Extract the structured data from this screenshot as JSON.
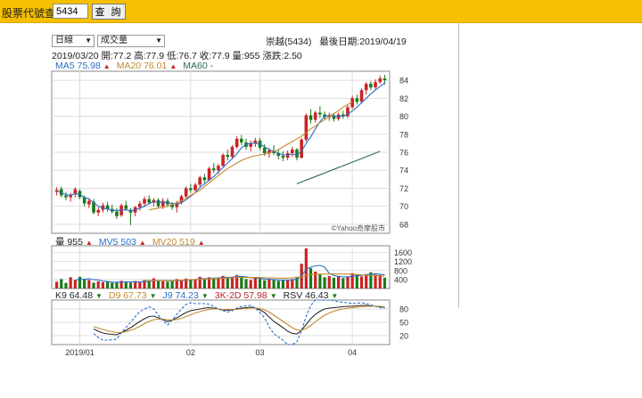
{
  "search": {
    "label": "股票代號查詢",
    "value": "5434",
    "button": "查 詢"
  },
  "controls": {
    "period": "日線",
    "indicator": "成交量"
  },
  "stock": {
    "title": "崇越(5434)",
    "last_date_label": "最後日期:",
    "last_date": "2019/04/19"
  },
  "quote_line": "2019/03/20 開:77.2 高:77.9 低:76.7 收:77.9 量:955 漲跌:2.50",
  "ma_legend": [
    {
      "label": "MA5 75.98",
      "color": "#2b6ec9",
      "arrow": "up"
    },
    {
      "label": "MA20 76.01",
      "color": "#c28a2f",
      "arrow": "up"
    },
    {
      "label": "MA60 -",
      "color": "#2f6b4f",
      "arrow": ""
    }
  ],
  "vol_legend": [
    {
      "label": "量 955",
      "color": "#222222",
      "arrow": "up"
    },
    {
      "label": "MV5 503",
      "color": "#2b6ec9",
      "arrow": "up"
    },
    {
      "label": "MV20 519",
      "color": "#c28a2f",
      "arrow": "up"
    }
  ],
  "kd_legend": [
    {
      "label": "K9 64.48",
      "color": "#2b2b2b",
      "arrow": "down"
    },
    {
      "label": "D9 67.73",
      "color": "#c28a2f",
      "arrow": "down"
    },
    {
      "label": "J9 74.23",
      "color": "#2b6ec9",
      "arrow": "down"
    },
    {
      "label": "3K-2D 57.98",
      "color": "#b3262b",
      "arrow": "down"
    },
    {
      "label": "RSV 46.43",
      "color": "#222222",
      "arrow": "down"
    }
  ],
  "watermark": "©Yahoo奇摩股市",
  "colors": {
    "up": "#cc2222",
    "down": "#1a7a1a",
    "ma5": "#2b6ec9",
    "ma20": "#c28a2f",
    "ma60": "#2f6b4f"
  },
  "chart_data": [
    {
      "type": "candlestick",
      "yticks": [
        68,
        70,
        72,
        74,
        76,
        78,
        80,
        82,
        84
      ],
      "ylim": [
        67,
        85
      ],
      "x_ticks": [
        "2019/01",
        "02",
        "03",
        "04"
      ],
      "candles": [
        {
          "o": 71.6,
          "h": 72.1,
          "l": 71.2,
          "c": 71.8
        },
        {
          "o": 71.9,
          "h": 72.2,
          "l": 71.0,
          "c": 71.2
        },
        {
          "o": 71.2,
          "h": 71.6,
          "l": 70.7,
          "c": 71.0
        },
        {
          "o": 71.0,
          "h": 71.5,
          "l": 70.5,
          "c": 71.3
        },
        {
          "o": 71.3,
          "h": 72.1,
          "l": 71.0,
          "c": 71.9
        },
        {
          "o": 71.7,
          "h": 71.9,
          "l": 70.8,
          "c": 71.0
        },
        {
          "o": 71.0,
          "h": 71.2,
          "l": 70.0,
          "c": 70.3
        },
        {
          "o": 70.2,
          "h": 70.9,
          "l": 69.8,
          "c": 70.6
        },
        {
          "o": 70.5,
          "h": 70.8,
          "l": 69.1,
          "c": 69.3
        },
        {
          "o": 69.3,
          "h": 69.9,
          "l": 68.9,
          "c": 69.6
        },
        {
          "o": 69.6,
          "h": 70.4,
          "l": 69.3,
          "c": 70.1
        },
        {
          "o": 70.1,
          "h": 70.5,
          "l": 69.4,
          "c": 69.7
        },
        {
          "o": 69.7,
          "h": 70.2,
          "l": 69.2,
          "c": 69.4
        },
        {
          "o": 69.4,
          "h": 69.8,
          "l": 68.6,
          "c": 68.9
        },
        {
          "o": 69.0,
          "h": 70.3,
          "l": 68.8,
          "c": 70.1
        },
        {
          "o": 70.1,
          "h": 70.6,
          "l": 69.5,
          "c": 69.7
        },
        {
          "o": 69.6,
          "h": 69.8,
          "l": 67.9,
          "c": 69.3
        },
        {
          "o": 69.3,
          "h": 70.0,
          "l": 68.9,
          "c": 69.9
        },
        {
          "o": 69.9,
          "h": 70.6,
          "l": 69.5,
          "c": 70.3
        },
        {
          "o": 70.3,
          "h": 71.1,
          "l": 70.0,
          "c": 70.8
        },
        {
          "o": 70.8,
          "h": 71.2,
          "l": 70.2,
          "c": 70.4
        },
        {
          "o": 70.4,
          "h": 70.9,
          "l": 70.0,
          "c": 70.7
        },
        {
          "o": 70.7,
          "h": 70.9,
          "l": 69.8,
          "c": 70.0
        },
        {
          "o": 70.0,
          "h": 70.9,
          "l": 69.7,
          "c": 70.6
        },
        {
          "o": 70.6,
          "h": 70.9,
          "l": 69.9,
          "c": 70.2
        },
        {
          "o": 70.2,
          "h": 70.5,
          "l": 69.6,
          "c": 69.9
        },
        {
          "o": 69.9,
          "h": 70.6,
          "l": 69.3,
          "c": 70.4
        },
        {
          "o": 70.4,
          "h": 71.3,
          "l": 70.2,
          "c": 71.1
        },
        {
          "o": 71.1,
          "h": 72.2,
          "l": 70.9,
          "c": 72.0
        },
        {
          "o": 72.0,
          "h": 72.5,
          "l": 71.5,
          "c": 71.8
        },
        {
          "o": 71.8,
          "h": 72.6,
          "l": 71.6,
          "c": 72.4
        },
        {
          "o": 72.4,
          "h": 73.4,
          "l": 72.2,
          "c": 73.2
        },
        {
          "o": 73.2,
          "h": 73.6,
          "l": 72.6,
          "c": 72.9
        },
        {
          "o": 72.9,
          "h": 74.4,
          "l": 72.8,
          "c": 74.2
        },
        {
          "o": 74.2,
          "h": 74.8,
          "l": 73.7,
          "c": 74.0
        },
        {
          "o": 74.0,
          "h": 74.7,
          "l": 73.6,
          "c": 74.5
        },
        {
          "o": 74.5,
          "h": 75.9,
          "l": 74.4,
          "c": 75.7
        },
        {
          "o": 75.7,
          "h": 76.3,
          "l": 75.1,
          "c": 75.5
        },
        {
          "o": 75.5,
          "h": 76.8,
          "l": 75.3,
          "c": 76.6
        },
        {
          "o": 76.6,
          "h": 77.8,
          "l": 76.4,
          "c": 77.5
        },
        {
          "o": 77.5,
          "h": 77.9,
          "l": 76.8,
          "c": 77.1
        },
        {
          "o": 77.1,
          "h": 77.5,
          "l": 76.3,
          "c": 76.6
        },
        {
          "o": 76.6,
          "h": 77.3,
          "l": 76.1,
          "c": 77.0
        },
        {
          "o": 77.0,
          "h": 77.6,
          "l": 76.6,
          "c": 77.3
        },
        {
          "o": 77.3,
          "h": 77.6,
          "l": 76.2,
          "c": 76.5
        },
        {
          "o": 76.5,
          "h": 76.9,
          "l": 75.6,
          "c": 75.9
        },
        {
          "o": 75.9,
          "h": 76.5,
          "l": 75.4,
          "c": 76.2
        },
        {
          "o": 76.2,
          "h": 76.8,
          "l": 75.7,
          "c": 75.9
        },
        {
          "o": 75.9,
          "h": 76.3,
          "l": 75.2,
          "c": 75.6
        },
        {
          "o": 75.6,
          "h": 76.1,
          "l": 75.0,
          "c": 75.4
        },
        {
          "o": 75.4,
          "h": 76.2,
          "l": 75.1,
          "c": 75.9
        },
        {
          "o": 75.9,
          "h": 76.6,
          "l": 75.5,
          "c": 76.3
        },
        {
          "o": 76.3,
          "h": 76.5,
          "l": 75.1,
          "c": 75.4
        },
        {
          "o": 75.4,
          "h": 77.6,
          "l": 75.3,
          "c": 77.4
        },
        {
          "o": 77.4,
          "h": 80.3,
          "l": 77.2,
          "c": 80.1
        },
        {
          "o": 80.1,
          "h": 80.8,
          "l": 79.2,
          "c": 79.6
        },
        {
          "o": 79.6,
          "h": 80.6,
          "l": 79.3,
          "c": 80.4
        },
        {
          "o": 80.4,
          "h": 81.1,
          "l": 79.8,
          "c": 80.2
        },
        {
          "o": 80.2,
          "h": 80.5,
          "l": 79.6,
          "c": 79.9
        },
        {
          "o": 79.9,
          "h": 80.4,
          "l": 79.5,
          "c": 80.1
        },
        {
          "o": 80.1,
          "h": 80.3,
          "l": 79.4,
          "c": 79.7
        },
        {
          "o": 79.7,
          "h": 80.4,
          "l": 79.5,
          "c": 80.2
        },
        {
          "o": 80.2,
          "h": 80.6,
          "l": 79.7,
          "c": 80.0
        },
        {
          "o": 80.0,
          "h": 81.2,
          "l": 79.8,
          "c": 81.0
        },
        {
          "o": 81.0,
          "h": 82.3,
          "l": 80.8,
          "c": 82.0
        },
        {
          "o": 82.0,
          "h": 82.4,
          "l": 81.3,
          "c": 81.6
        },
        {
          "o": 81.6,
          "h": 83.1,
          "l": 81.4,
          "c": 82.9
        },
        {
          "o": 82.9,
          "h": 83.8,
          "l": 82.4,
          "c": 83.6
        },
        {
          "o": 83.6,
          "h": 83.9,
          "l": 82.9,
          "c": 83.2
        },
        {
          "o": 83.2,
          "h": 84.1,
          "l": 82.9,
          "c": 83.8
        },
        {
          "o": 83.8,
          "h": 84.5,
          "l": 83.6,
          "c": 84.2
        },
        {
          "o": 84.2,
          "h": 84.6,
          "l": 83.5,
          "c": 84.0
        }
      ],
      "ma5": [
        71.7,
        71.5,
        71.3,
        71.2,
        71.4,
        71.3,
        71.0,
        70.8,
        70.4,
        70.0,
        69.8,
        69.7,
        69.6,
        69.5,
        69.6,
        69.6,
        69.5,
        69.6,
        69.8,
        70.0,
        70.3,
        70.5,
        70.5,
        70.4,
        70.4,
        70.3,
        70.2,
        70.4,
        70.7,
        71.1,
        71.5,
        72.1,
        72.5,
        72.9,
        73.3,
        73.8,
        74.3,
        74.8,
        75.3,
        75.8,
        76.5,
        76.9,
        77.0,
        77.0,
        76.9,
        76.6,
        76.3,
        76.1,
        75.9,
        75.7,
        75.7,
        75.8,
        75.7,
        76.1,
        77.0,
        77.7,
        78.6,
        79.4,
        80.0,
        80.1,
        80.0,
        80.0,
        80.0,
        80.2,
        80.6,
        81.0,
        81.5,
        82.0,
        82.5,
        82.9,
        83.3,
        83.7
      ],
      "ma20": [
        null,
        null,
        null,
        null,
        null,
        null,
        null,
        null,
        null,
        null,
        null,
        null,
        null,
        null,
        null,
        null,
        null,
        null,
        null,
        null,
        69.6,
        69.7,
        69.8,
        69.9,
        70.0,
        70.2,
        70.4,
        70.6,
        70.9,
        71.2,
        71.5,
        71.8,
        72.2,
        72.6,
        73.0,
        73.4,
        73.8,
        74.2,
        74.5,
        74.8,
        75.1,
        75.3,
        75.5,
        75.6,
        75.7,
        75.8,
        75.9,
        76.1,
        76.3,
        76.6,
        76.9,
        77.2,
        77.5,
        77.8,
        78.2,
        78.6,
        78.9,
        79.3,
        79.6,
        80.0,
        80.3,
        80.6,
        81.0,
        81.3,
        81.6
      ],
      "ma60": [
        null,
        null,
        null,
        null,
        null,
        null,
        null,
        null,
        null,
        null,
        null,
        null,
        null,
        null,
        null,
        null,
        null,
        null,
        null,
        null,
        null,
        null,
        null,
        null,
        null,
        null,
        null,
        null,
        null,
        null,
        null,
        null,
        null,
        null,
        null,
        null,
        null,
        null,
        null,
        null,
        null,
        null,
        null,
        null,
        null,
        null,
        null,
        null,
        null,
        null,
        null,
        null,
        72.5,
        72.7,
        72.9,
        73.1,
        73.3,
        73.5,
        73.7,
        73.9,
        74.1,
        74.3,
        74.5,
        74.7,
        74.9,
        75.1,
        75.3,
        75.5,
        75.7,
        75.9,
        76.1
      ]
    },
    {
      "type": "bar",
      "yticks": [
        400,
        800,
        1200,
        1600
      ],
      "ylim": [
        0,
        1900
      ],
      "volumes": [
        300,
        420,
        250,
        500,
        380,
        520,
        430,
        380,
        260,
        320,
        280,
        300,
        250,
        270,
        340,
        300,
        260,
        330,
        280,
        380,
        300,
        450,
        360,
        320,
        300,
        330,
        420,
        380,
        440,
        400,
        400,
        520,
        450,
        500,
        470,
        460,
        560,
        500,
        520,
        600,
        500,
        420,
        380,
        460,
        430,
        360,
        400,
        380,
        340,
        360,
        380,
        420,
        520,
        1100,
        1780,
        900,
        750,
        620,
        500,
        560,
        480,
        540,
        460,
        540,
        680,
        620,
        540,
        640,
        720,
        620,
        600,
        480
      ],
      "mv5": [
        null,
        null,
        null,
        null,
        370,
        410,
        400,
        440,
        390,
        380,
        330,
        310,
        280,
        280,
        290,
        290,
        290,
        300,
        290,
        310,
        310,
        350,
        350,
        360,
        340,
        350,
        350,
        350,
        370,
        380,
        400,
        430,
        440,
        450,
        460,
        470,
        490,
        500,
        500,
        530,
        540,
        520,
        480,
        470,
        450,
        410,
        410,
        400,
        380,
        370,
        370,
        380,
        410,
        560,
        840,
        950,
        1010,
        1030,
        950,
        670,
        580,
        540,
        510,
        520,
        540,
        570,
        580,
        610,
        640,
        650,
        630,
        610
      ],
      "mv20": [
        null,
        null,
        null,
        null,
        null,
        null,
        null,
        null,
        null,
        null,
        null,
        null,
        null,
        null,
        null,
        null,
        null,
        null,
        null,
        350,
        350,
        350,
        350,
        350,
        350,
        350,
        360,
        370,
        380,
        390,
        400,
        410,
        420,
        430,
        440,
        450,
        460,
        470,
        480,
        490,
        490,
        490,
        490,
        490,
        490,
        480,
        470,
        470,
        460,
        460,
        460,
        470,
        490,
        520,
        580,
        610,
        630,
        640,
        640,
        650,
        650,
        640,
        640,
        640,
        640,
        620,
        600,
        590,
        580,
        570,
        560,
        550
      ]
    },
    {
      "type": "line",
      "yticks": [
        20,
        50,
        80
      ],
      "ylim": [
        0,
        100
      ],
      "k9": [
        null,
        null,
        null,
        null,
        null,
        null,
        null,
        null,
        35,
        30,
        26,
        24,
        23,
        22,
        27,
        32,
        38,
        45,
        52,
        58,
        63,
        64,
        60,
        56,
        52,
        55,
        60,
        66,
        72,
        76,
        78,
        80,
        82,
        83,
        82,
        80,
        78,
        77,
        78,
        80,
        82,
        83,
        84,
        82,
        78,
        72,
        62,
        52,
        45,
        38,
        30,
        25,
        24,
        32,
        45,
        58,
        68,
        75,
        80,
        82,
        83,
        84,
        85,
        86,
        86,
        87,
        88,
        88,
        87,
        86,
        85,
        84
      ],
      "d9": [
        null,
        null,
        null,
        null,
        null,
        null,
        null,
        null,
        40,
        37,
        34,
        31,
        29,
        27,
        27,
        29,
        32,
        36,
        41,
        47,
        52,
        56,
        57,
        57,
        56,
        55,
        56,
        59,
        63,
        67,
        71,
        74,
        77,
        79,
        80,
        80,
        79,
        79,
        79,
        79,
        80,
        81,
        82,
        82,
        81,
        78,
        73,
        66,
        59,
        52,
        45,
        38,
        33,
        32,
        36,
        43,
        51,
        59,
        66,
        71,
        75,
        78,
        80,
        82,
        83,
        84,
        85,
        86,
        86,
        86,
        86,
        85
      ],
      "j9": [
        null,
        null,
        null,
        null,
        null,
        null,
        null,
        null,
        25,
        16,
        10,
        10,
        11,
        12,
        27,
        38,
        50,
        63,
        74,
        80,
        85,
        80,
        66,
        54,
        44,
        55,
        68,
        80,
        90,
        94,
        92,
        92,
        92,
        91,
        86,
        80,
        76,
        73,
        76,
        82,
        86,
        87,
        88,
        82,
        72,
        60,
        40,
        24,
        17,
        10,
        0,
        0,
        6,
        32,
        63,
        88,
        100,
        100,
        100,
        100,
        99,
        96,
        95,
        94,
        92,
        93,
        94,
        92,
        89,
        86,
        83,
        82
      ],
      "x_ticks": [
        "2019/01",
        "02",
        "03",
        "04"
      ]
    }
  ]
}
